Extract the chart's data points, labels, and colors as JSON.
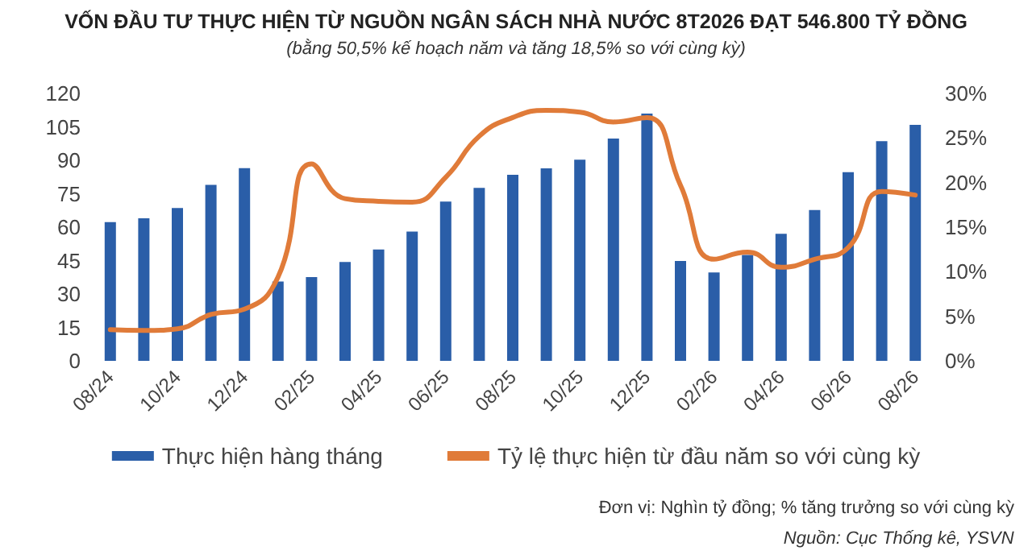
{
  "chart_data": {
    "type": "bar",
    "title": "VỐN ĐẦU TƯ THỰC HIỆN TỪ NGUỒN NGÂN SÁCH NHÀ NƯỚC 8T2026 ĐẠT 546.800 TỶ ĐỒNG",
    "subtitle": "(bằng 50,5% kế hoạch năm và tăng 18,5% so với cùng kỳ)",
    "categories": [
      "08/24",
      null,
      "10/24",
      null,
      "12/24",
      null,
      "02/25",
      null,
      "04/25",
      null,
      "06/25",
      null,
      "08/25",
      null,
      "10/25",
      null,
      "12/25",
      null,
      "02/26",
      null,
      "04/26",
      null,
      "06/26",
      null,
      "08/26"
    ],
    "series": [
      {
        "name": "Thực hiện hàng tháng",
        "color": "#2a5ea8",
        "values": [
          62.3,
          64,
          68.6,
          79,
          86.5,
          35.6,
          37.6,
          44.4,
          50,
          58,
          71.5,
          77.6,
          83.5,
          86.4,
          90.3,
          99.8,
          111,
          44.8,
          39.7,
          47.5,
          57,
          67.7,
          84.7,
          98.6,
          105.9
        ]
      },
      {
        "name": "Tỷ lệ thực hiện từ đầu năm so với cùng kỳ",
        "type": "line",
        "axis": "y2",
        "color": "#e07b39",
        "values": [
          3.5,
          3.4,
          3.6,
          5.2,
          5.8,
          9.4,
          22.1,
          18.2,
          17.9,
          17.8,
          20.6,
          25.2,
          27.3,
          28.1,
          27.9,
          26.8,
          27.3,
          19.7,
          11.4,
          12.2,
          10.5,
          11.4,
          12.7,
          19,
          18.6
        ]
      }
    ],
    "ylim": [
      0,
      120
    ],
    "yticks": [
      0,
      15,
      30,
      45,
      60,
      75,
      90,
      105,
      120
    ],
    "y2lim": [
      0,
      30
    ],
    "y2ticks": [
      {
        "value": 0,
        "label": "0%"
      },
      {
        "value": 5,
        "label": "5%"
      },
      {
        "value": 10,
        "label": "10%"
      },
      {
        "value": 15,
        "label": "15%"
      },
      {
        "value": 20,
        "label": "20%"
      },
      {
        "value": 25,
        "label": "25%"
      },
      {
        "value": 30,
        "label": "30%"
      }
    ],
    "grid": false,
    "legend": "bottom",
    "marker": "none",
    "annotations": [
      "Đơn vị: Nghìn tỷ đồng; % tăng trưởng so với cùng kỳ",
      "Nguồn: Cục Thống kê, YSVN"
    ]
  }
}
